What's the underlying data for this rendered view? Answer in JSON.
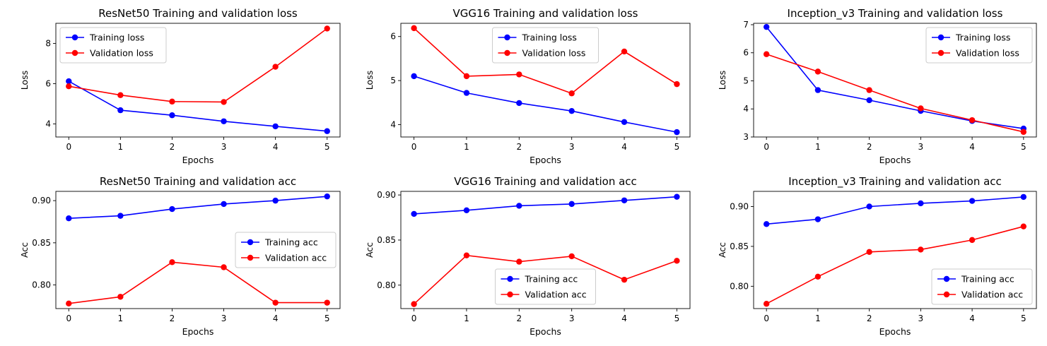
{
  "colors": {
    "training": "#0000ff",
    "validation": "#ff0000"
  },
  "chart_data": [
    {
      "type": "line",
      "title": "ResNet50 Training and validation loss",
      "xlabel": "Epochs",
      "ylabel": "Loss",
      "x": [
        0,
        1,
        2,
        3,
        4,
        5
      ],
      "xlim": [
        -0.25,
        5.25
      ],
      "ylim": [
        3.35,
        9.0
      ],
      "xticks": [
        "0",
        "1",
        "2",
        "3",
        "4",
        "5"
      ],
      "yticks": [
        {
          "v": 4,
          "label": "4"
        },
        {
          "v": 6,
          "label": "6"
        },
        {
          "v": 8,
          "label": "8"
        }
      ],
      "grid": false,
      "legend_loc": "upper-left",
      "series": [
        {
          "name": "Training loss",
          "color": "#0000ff",
          "values": [
            6.12,
            4.68,
            4.43,
            4.13,
            3.88,
            3.64
          ]
        },
        {
          "name": "Validation loss",
          "color": "#ff0000",
          "values": [
            5.87,
            5.43,
            5.11,
            5.09,
            6.84,
            8.74
          ]
        }
      ]
    },
    {
      "type": "line",
      "title": "VGG16 Training and validation loss",
      "xlabel": "Epochs",
      "ylabel": "Loss",
      "x": [
        0,
        1,
        2,
        3,
        4,
        5
      ],
      "xlim": [
        -0.25,
        5.25
      ],
      "ylim": [
        3.72,
        6.3
      ],
      "xticks": [
        "0",
        "1",
        "2",
        "3",
        "4",
        "5"
      ],
      "yticks": [
        {
          "v": 4,
          "label": "4"
        },
        {
          "v": 5,
          "label": "5"
        },
        {
          "v": 6,
          "label": "6"
        }
      ],
      "grid": false,
      "legend_loc": "upper-center",
      "series": [
        {
          "name": "Training loss",
          "color": "#0000ff",
          "values": [
            5.1,
            4.72,
            4.49,
            4.31,
            4.06,
            3.83
          ]
        },
        {
          "name": "Validation loss",
          "color": "#ff0000",
          "values": [
            6.19,
            5.1,
            5.14,
            4.71,
            5.66,
            4.92
          ]
        }
      ]
    },
    {
      "type": "line",
      "title": "Inception_v3 Training and validation loss",
      "xlabel": "Epochs",
      "ylabel": "Loss",
      "x": [
        0,
        1,
        2,
        3,
        4,
        5
      ],
      "xlim": [
        -0.25,
        5.25
      ],
      "ylim": [
        3.0,
        7.05
      ],
      "xticks": [
        "0",
        "1",
        "2",
        "3",
        "4",
        "5"
      ],
      "yticks": [
        {
          "v": 3,
          "label": "3"
        },
        {
          "v": 4,
          "label": "4"
        },
        {
          "v": 5,
          "label": "5"
        },
        {
          "v": 6,
          "label": "6"
        },
        {
          "v": 7,
          "label": "7"
        }
      ],
      "grid": false,
      "legend_loc": "upper-right",
      "series": [
        {
          "name": "Training loss",
          "color": "#0000ff",
          "values": [
            6.92,
            4.67,
            4.31,
            3.93,
            3.57,
            3.3
          ]
        },
        {
          "name": "Validation loss",
          "color": "#ff0000",
          "values": [
            5.95,
            5.33,
            4.67,
            4.02,
            3.6,
            3.18
          ]
        }
      ]
    },
    {
      "type": "line",
      "title": "ResNet50 Training and validation acc",
      "xlabel": "Epochs",
      "ylabel": "Acc",
      "x": [
        0,
        1,
        2,
        3,
        4,
        5
      ],
      "xlim": [
        -0.25,
        5.25
      ],
      "ylim": [
        0.772,
        0.911
      ],
      "xticks": [
        "0",
        "1",
        "2",
        "3",
        "4",
        "5"
      ],
      "yticks": [
        {
          "v": 0.8,
          "label": "0.80"
        },
        {
          "v": 0.85,
          "label": "0.85"
        },
        {
          "v": 0.9,
          "label": "0.90"
        }
      ],
      "grid": false,
      "legend_loc": "center-right",
      "series": [
        {
          "name": "Training acc",
          "color": "#0000ff",
          "values": [
            0.879,
            0.882,
            0.89,
            0.896,
            0.9,
            0.905
          ]
        },
        {
          "name": "Validation acc",
          "color": "#ff0000",
          "values": [
            0.778,
            0.786,
            0.827,
            0.821,
            0.779,
            0.779
          ]
        }
      ]
    },
    {
      "type": "line",
      "title": "VGG16 Training and validation acc",
      "xlabel": "Epochs",
      "ylabel": "Acc",
      "x": [
        0,
        1,
        2,
        3,
        4,
        5
      ],
      "xlim": [
        -0.25,
        5.25
      ],
      "ylim": [
        0.774,
        0.904
      ],
      "xticks": [
        "0",
        "1",
        "2",
        "3",
        "4",
        "5"
      ],
      "yticks": [
        {
          "v": 0.8,
          "label": "0.80"
        },
        {
          "v": 0.85,
          "label": "0.85"
        },
        {
          "v": 0.9,
          "label": "0.90"
        }
      ],
      "grid": false,
      "legend_loc": "lower-center",
      "series": [
        {
          "name": "Training acc",
          "color": "#0000ff",
          "values": [
            0.879,
            0.883,
            0.888,
            0.89,
            0.894,
            0.898
          ]
        },
        {
          "name": "Validation acc",
          "color": "#ff0000",
          "values": [
            0.779,
            0.833,
            0.826,
            0.832,
            0.806,
            0.827
          ]
        }
      ]
    },
    {
      "type": "line",
      "title": "Inception_v3 Training and validation acc",
      "xlabel": "Epochs",
      "ylabel": "Acc",
      "x": [
        0,
        1,
        2,
        3,
        4,
        5
      ],
      "xlim": [
        -0.25,
        5.25
      ],
      "ylim": [
        0.772,
        0.919
      ],
      "xticks": [
        "0",
        "1",
        "2",
        "3",
        "4",
        "5"
      ],
      "yticks": [
        {
          "v": 0.8,
          "label": "0.80"
        },
        {
          "v": 0.85,
          "label": "0.85"
        },
        {
          "v": 0.9,
          "label": "0.90"
        }
      ],
      "grid": false,
      "legend_loc": "lower-right",
      "series": [
        {
          "name": "Training acc",
          "color": "#0000ff",
          "values": [
            0.878,
            0.884,
            0.9,
            0.904,
            0.907,
            0.912
          ]
        },
        {
          "name": "Validation acc",
          "color": "#ff0000",
          "values": [
            0.778,
            0.812,
            0.843,
            0.846,
            0.858,
            0.875
          ]
        }
      ]
    }
  ]
}
